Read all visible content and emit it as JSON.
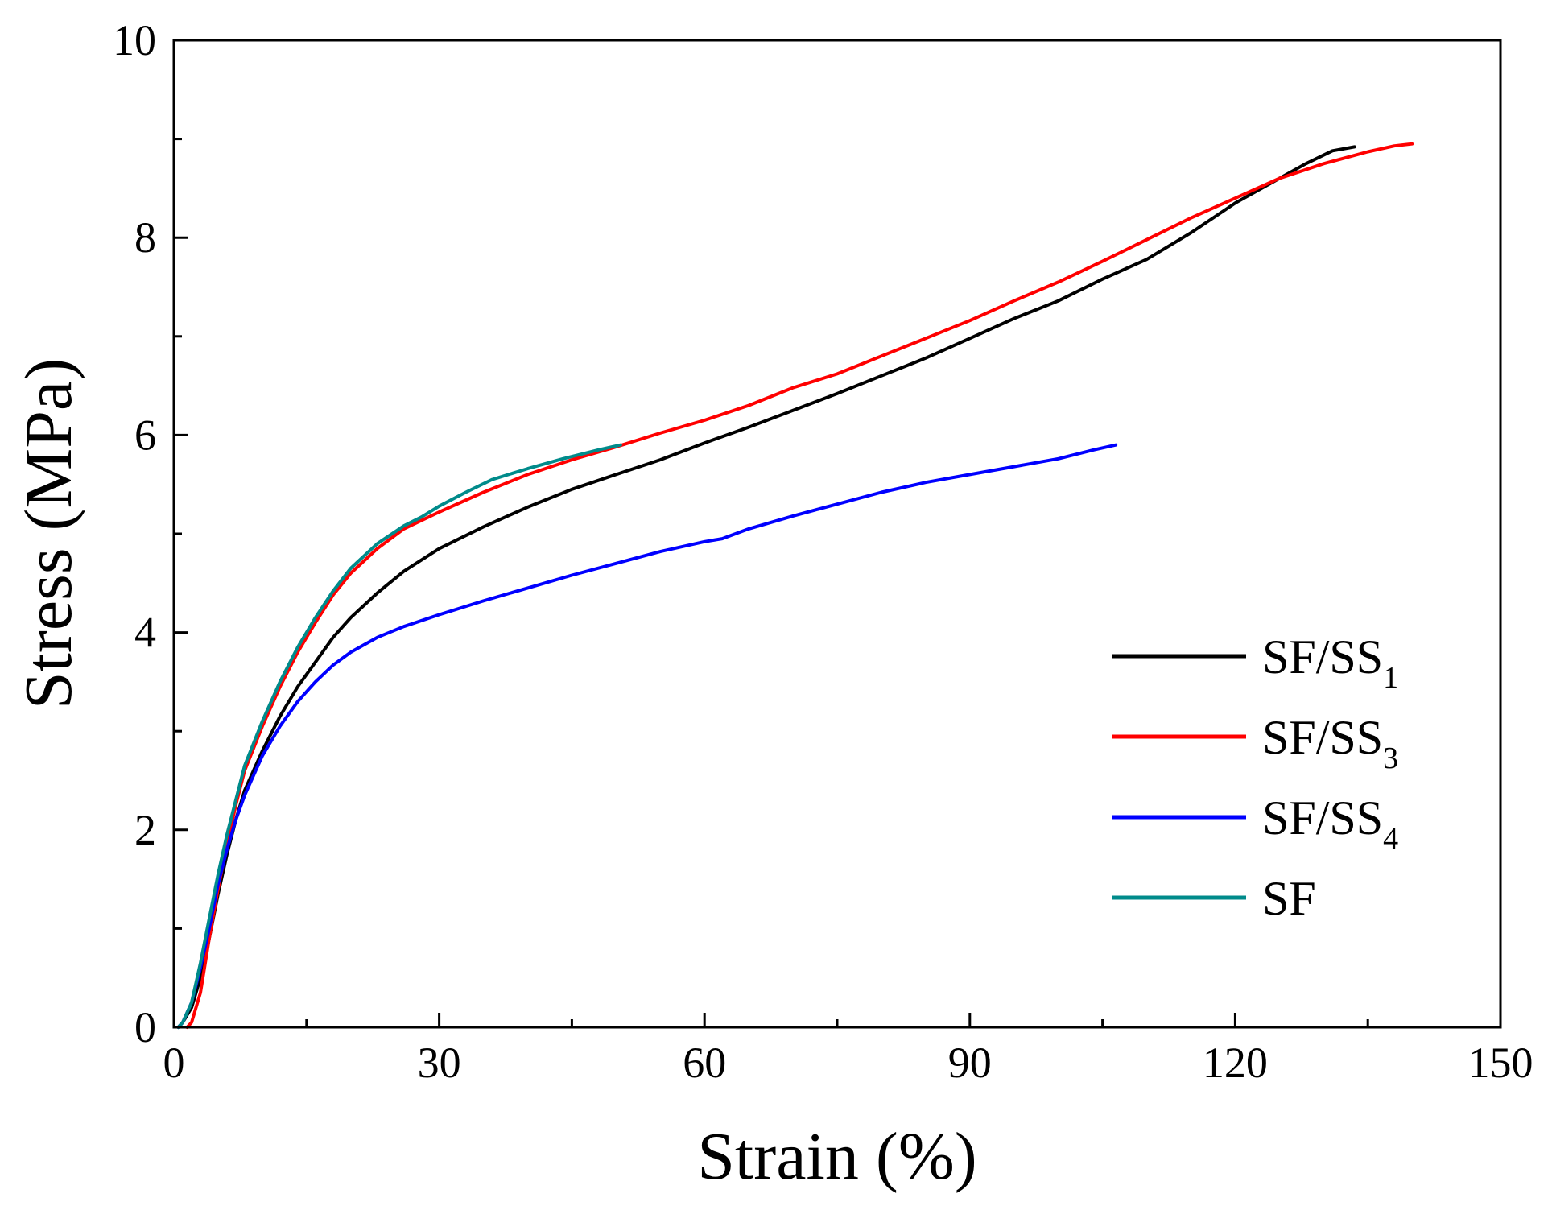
{
  "chart_data": {
    "type": "line",
    "title": "",
    "xlabel": "Strain (%)",
    "ylabel": "Stress (MPa)",
    "xlim": [
      0,
      150
    ],
    "ylim": [
      0,
      10
    ],
    "xticks": [
      "0",
      "30",
      "60",
      "90",
      "120",
      "150"
    ],
    "yticks": [
      "0",
      "2",
      "4",
      "6",
      "8",
      "10"
    ],
    "grid": false,
    "legend_position": "bottom-right",
    "series": [
      {
        "name": "SF/SS",
        "subscript": "1",
        "color": "#000000",
        "points": [
          [
            0.5,
            0
          ],
          [
            1,
            0.05
          ],
          [
            2,
            0.2
          ],
          [
            3,
            0.5
          ],
          [
            4,
            0.9
          ],
          [
            5,
            1.35
          ],
          [
            6,
            1.75
          ],
          [
            7,
            2.1
          ],
          [
            8,
            2.4
          ],
          [
            10,
            2.8
          ],
          [
            12,
            3.15
          ],
          [
            14,
            3.45
          ],
          [
            16,
            3.7
          ],
          [
            18,
            3.95
          ],
          [
            20,
            4.15
          ],
          [
            23,
            4.4
          ],
          [
            26,
            4.62
          ],
          [
            30,
            4.85
          ],
          [
            35,
            5.07
          ],
          [
            40,
            5.27
          ],
          [
            45,
            5.45
          ],
          [
            50,
            5.6
          ],
          [
            55,
            5.75
          ],
          [
            60,
            5.92
          ],
          [
            65,
            6.08
          ],
          [
            70,
            6.25
          ],
          [
            75,
            6.42
          ],
          [
            80,
            6.6
          ],
          [
            85,
            6.78
          ],
          [
            90,
            6.98
          ],
          [
            95,
            7.18
          ],
          [
            100,
            7.36
          ],
          [
            105,
            7.58
          ],
          [
            110,
            7.78
          ],
          [
            115,
            8.05
          ],
          [
            120,
            8.35
          ],
          [
            125,
            8.6
          ],
          [
            128,
            8.75
          ],
          [
            131,
            8.88
          ],
          [
            133.5,
            8.92
          ]
        ]
      },
      {
        "name": "SF/SS",
        "subscript": "3",
        "color": "#ff0000",
        "points": [
          [
            1.5,
            0
          ],
          [
            2,
            0.05
          ],
          [
            3,
            0.35
          ],
          [
            4,
            0.9
          ],
          [
            5,
            1.4
          ],
          [
            6,
            1.85
          ],
          [
            7,
            2.25
          ],
          [
            8,
            2.6
          ],
          [
            10,
            3.05
          ],
          [
            12,
            3.45
          ],
          [
            14,
            3.8
          ],
          [
            16,
            4.1
          ],
          [
            18,
            4.38
          ],
          [
            20,
            4.6
          ],
          [
            23,
            4.85
          ],
          [
            26,
            5.05
          ],
          [
            30,
            5.22
          ],
          [
            35,
            5.42
          ],
          [
            40,
            5.6
          ],
          [
            45,
            5.75
          ],
          [
            50,
            5.88
          ],
          [
            55,
            6.02
          ],
          [
            60,
            6.15
          ],
          [
            65,
            6.3
          ],
          [
            70,
            6.48
          ],
          [
            75,
            6.62
          ],
          [
            80,
            6.8
          ],
          [
            85,
            6.98
          ],
          [
            90,
            7.16
          ],
          [
            95,
            7.36
          ],
          [
            100,
            7.55
          ],
          [
            105,
            7.76
          ],
          [
            110,
            7.98
          ],
          [
            115,
            8.2
          ],
          [
            120,
            8.4
          ],
          [
            125,
            8.6
          ],
          [
            130,
            8.75
          ],
          [
            135,
            8.87
          ],
          [
            138,
            8.93
          ],
          [
            140,
            8.95
          ]
        ]
      },
      {
        "name": "SF/SS",
        "subscript": "4",
        "color": "#0000ff",
        "points": [
          [
            0.5,
            0
          ],
          [
            1,
            0.05
          ],
          [
            2,
            0.25
          ],
          [
            3,
            0.6
          ],
          [
            4,
            1.0
          ],
          [
            5,
            1.45
          ],
          [
            6,
            1.8
          ],
          [
            7,
            2.1
          ],
          [
            8,
            2.35
          ],
          [
            10,
            2.75
          ],
          [
            12,
            3.05
          ],
          [
            14,
            3.3
          ],
          [
            16,
            3.5
          ],
          [
            18,
            3.67
          ],
          [
            20,
            3.8
          ],
          [
            23,
            3.95
          ],
          [
            26,
            4.06
          ],
          [
            30,
            4.18
          ],
          [
            35,
            4.32
          ],
          [
            40,
            4.45
          ],
          [
            45,
            4.58
          ],
          [
            50,
            4.7
          ],
          [
            55,
            4.82
          ],
          [
            60,
            4.92
          ],
          [
            62,
            4.95
          ],
          [
            65,
            5.05
          ],
          [
            70,
            5.18
          ],
          [
            75,
            5.3
          ],
          [
            80,
            5.42
          ],
          [
            85,
            5.52
          ],
          [
            90,
            5.6
          ],
          [
            95,
            5.68
          ],
          [
            100,
            5.76
          ],
          [
            104,
            5.85
          ],
          [
            106.5,
            5.9
          ]
        ]
      },
      {
        "name": "SF",
        "subscript": "",
        "color": "#008b8b",
        "points": [
          [
            0.5,
            0
          ],
          [
            1,
            0.05
          ],
          [
            2,
            0.25
          ],
          [
            3,
            0.65
          ],
          [
            4,
            1.1
          ],
          [
            5,
            1.55
          ],
          [
            6,
            1.95
          ],
          [
            7,
            2.3
          ],
          [
            8,
            2.65
          ],
          [
            10,
            3.1
          ],
          [
            12,
            3.5
          ],
          [
            14,
            3.85
          ],
          [
            16,
            4.15
          ],
          [
            18,
            4.42
          ],
          [
            20,
            4.65
          ],
          [
            23,
            4.9
          ],
          [
            26,
            5.08
          ],
          [
            28,
            5.17
          ],
          [
            30,
            5.28
          ],
          [
            33,
            5.42
          ],
          [
            36,
            5.55
          ],
          [
            40,
            5.66
          ],
          [
            44,
            5.76
          ],
          [
            48,
            5.85
          ],
          [
            50.5,
            5.9
          ]
        ]
      }
    ]
  }
}
